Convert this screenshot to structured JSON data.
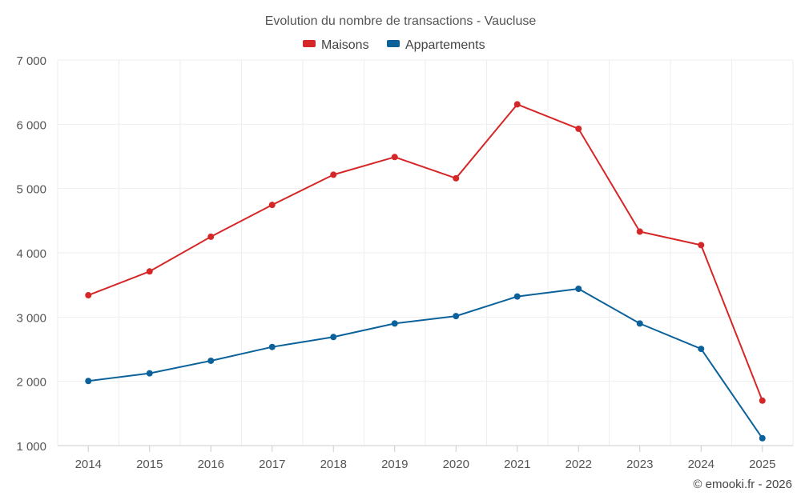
{
  "chart_data": {
    "type": "line",
    "title": "Evolution du nombre de transactions - Vaucluse",
    "categories": [
      "2014",
      "2015",
      "2016",
      "2017",
      "2018",
      "2019",
      "2020",
      "2021",
      "2022",
      "2023",
      "2024",
      "2025"
    ],
    "series": [
      {
        "name": "Maisons",
        "color": "#d62728",
        "values": [
          3340,
          3710,
          4250,
          4745,
          5215,
          5490,
          5160,
          6310,
          5930,
          4330,
          4120,
          1700
        ]
      },
      {
        "name": "Appartements",
        "color": "#0b629b",
        "values": [
          2005,
          2125,
          2320,
          2535,
          2690,
          2900,
          3015,
          3320,
          3440,
          2900,
          2505,
          1115
        ]
      }
    ],
    "ylim": [
      1000,
      7000
    ],
    "yticks": [
      1000,
      2000,
      3000,
      4000,
      5000,
      6000,
      7000
    ],
    "ytick_labels": [
      "1 000",
      "2 000",
      "3 000",
      "4 000",
      "5 000",
      "6 000",
      "7 000"
    ],
    "xlabel": "",
    "ylabel": "",
    "legend_position": "top-center",
    "grid": true
  },
  "credit": "© emooki.fr - 2026"
}
